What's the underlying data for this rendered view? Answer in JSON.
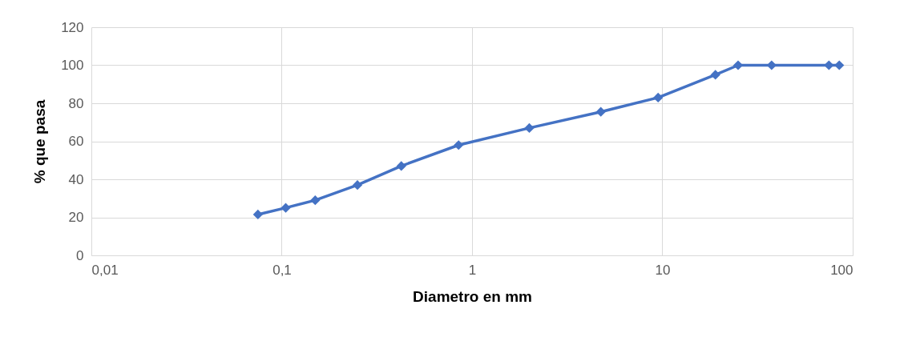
{
  "chart_data": {
    "type": "line",
    "xlabel": "Diametro en mm",
    "ylabel": "% que pasa",
    "log": "x",
    "x": [
      0.075,
      0.105,
      0.15,
      0.25,
      0.425,
      0.85,
      2,
      4.75,
      9.5,
      19,
      25,
      37.5,
      75,
      85
    ],
    "series": [
      {
        "color": "#4472c4",
        "values": [
          21.5,
          25,
          29,
          37,
          47,
          58,
          67,
          75.5,
          83,
          95,
          100,
          100,
          100,
          100
        ]
      }
    ],
    "xlim": [
      0.01,
      100
    ],
    "xticks": [
      {
        "value": 0.01,
        "label": "0,01"
      },
      {
        "value": 0.1,
        "label": "0,1"
      },
      1,
      10,
      100
    ],
    "ylim": [
      0,
      120
    ],
    "yticks": [
      0,
      20,
      40,
      60,
      80,
      100,
      120
    ],
    "grid": true,
    "marker": "diamond",
    "line_style": "solid",
    "legend": false
  }
}
